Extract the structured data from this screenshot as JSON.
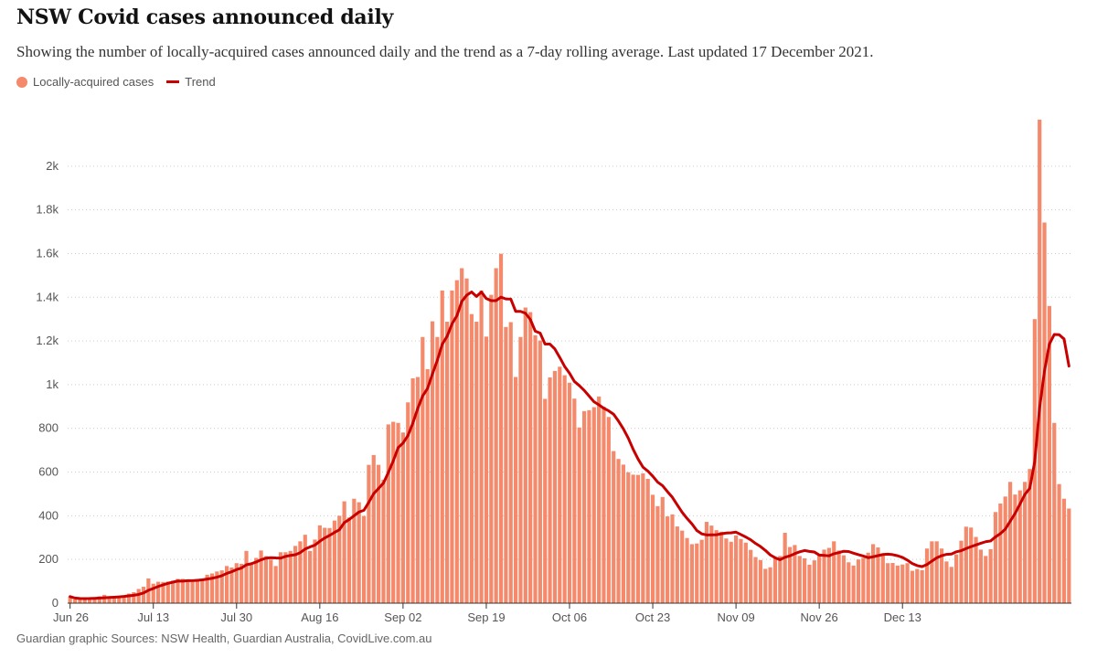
{
  "chart_data": {
    "type": "bar",
    "title": "NSW Covid cases announced daily",
    "subtitle": "Showing the number of locally-acquired cases announced daily and the trend as a 7-day rolling average. Last updated 17 December 2021.",
    "source": "Guardian graphic Sources: NSW Health, Guardian Australia, CovidLive.com.au",
    "legend": {
      "placement": "top-left",
      "bars_label": "Locally-acquired cases",
      "line_label": "Trend"
    },
    "colors": {
      "bars": "#f4896b",
      "trend": "#c70000",
      "grid": "#cccccc",
      "text": "#555555"
    },
    "x_start": "2021-06-26",
    "x_end": "2021-12-17",
    "x_ticks": [
      "Jun 26",
      "Jul 13",
      "Jul 30",
      "Aug 16",
      "Sep 02",
      "Sep 19",
      "Oct 06",
      "Oct 23",
      "Nov 09",
      "Nov 26",
      "Dec 13"
    ],
    "y_ticks": [
      "0",
      "200",
      "400",
      "600",
      "800",
      "1k",
      "1.2k",
      "1.4k",
      "1.6k",
      "1.8k",
      "2k"
    ],
    "ylim": [
      0,
      2200
    ],
    "grid": true,
    "series": [
      {
        "name": "Locally-acquired cases",
        "type": "bar",
        "values": [
          30,
          17,
          18,
          19,
          22,
          27,
          31,
          38,
          27,
          27,
          31,
          35,
          44,
          50,
          65,
          75,
          113,
          89,
          98,
          97,
          99,
          103,
          111,
          111,
          102,
          97,
          110,
          112,
          130,
          136,
          145,
          150,
          170,
          163,
          183,
          180,
          239,
          177,
          207,
          241,
          215,
          199,
          170,
          233,
          233,
          239,
          262,
          283,
          313,
          239,
          291,
          356,
          345,
          344,
          378,
          400,
          466,
          392,
          478,
          462,
          399,
          633,
          678,
          633,
          565,
          818,
          830,
          825,
          781,
          919,
          1029,
          1035,
          1218,
          1071,
          1290,
          1218,
          1431,
          1288,
          1431,
          1478,
          1533,
          1486,
          1323,
          1288,
          1431,
          1220,
          1411,
          1533,
          1599,
          1264,
          1286,
          1035,
          1218,
          1353,
          1332,
          1226,
          1202,
          935,
          1033,
          1063,
          1082,
          1043,
          1009,
          936,
          804,
          879,
          883,
          897,
          946,
          899,
          852,
          696,
          660,
          634,
          599,
          588,
          587,
          594,
          569,
          496,
          444,
          486,
          397,
          406,
          351,
          332,
          298,
          270,
          273,
          290,
          372,
          355,
          334,
          327,
          296,
          281,
          310,
          294,
          277,
          244,
          211,
          197,
          157,
          164,
          204,
          216,
          322,
          257,
          266,
          216,
          205,
          176,
          196,
          226,
          245,
          253,
          283,
          241,
          219,
          187,
          172,
          200,
          207,
          231,
          270,
          255,
          224,
          183,
          184,
          172,
          177,
          183,
          148,
          156,
          151,
          250,
          283,
          283,
          250,
          191,
          166,
          223,
          286,
          350,
          346,
          303,
          245,
          216,
          247,
          417,
          456,
          488,
          555,
          497,
          516,
          555,
          614,
          1300,
          2213,
          1742,
          1360,
          825,
          545,
          478,
          433
        ],
        "note": ""
      },
      {
        "name": "Trend",
        "type": "line",
        "values": []
      }
    ]
  }
}
